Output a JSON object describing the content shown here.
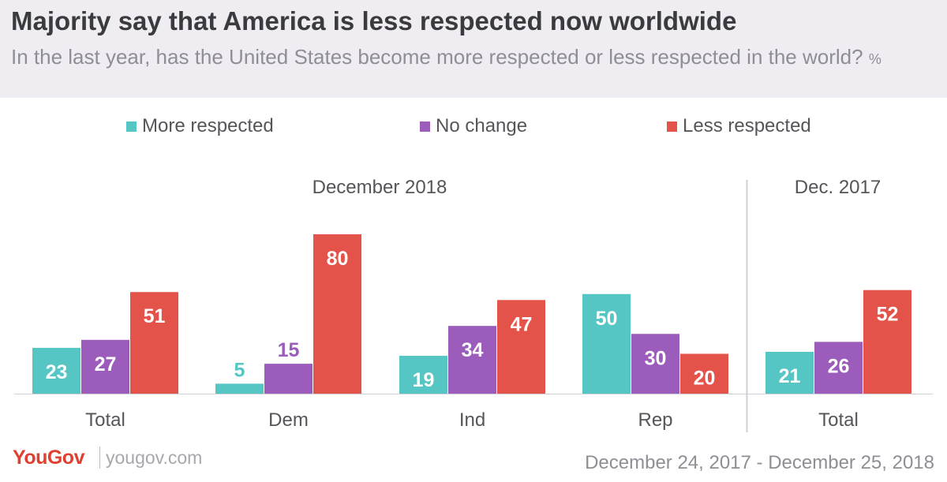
{
  "header": {
    "title": "Majority say that America is less respected now worldwide",
    "subtitle": "In the last year, has the United States become more respected or less respected in the world?",
    "unit": "%"
  },
  "legend": [
    {
      "label": "More respected",
      "color": "#55c6c3"
    },
    {
      "label": "No change",
      "color": "#9b5cbb"
    },
    {
      "label": "Less respected",
      "color": "#e4534a"
    }
  ],
  "chart_data": {
    "type": "bar",
    "ylim": [
      0,
      80
    ],
    "series": [
      {
        "name": "More respected",
        "color": "#55c6c3",
        "values": [
          23,
          5,
          19,
          50,
          21
        ]
      },
      {
        "name": "No change",
        "color": "#9b5cbb",
        "values": [
          27,
          15,
          34,
          30,
          26
        ]
      },
      {
        "name": "Less respected",
        "color": "#e4534a",
        "values": [
          51,
          80,
          47,
          20,
          52
        ]
      }
    ],
    "categories": [
      "Total",
      "Dem",
      "Ind",
      "Rep",
      "Total"
    ],
    "groups": [
      {
        "label": "December 2018",
        "categories": [
          "Total",
          "Dem",
          "Ind",
          "Rep"
        ]
      },
      {
        "label": "Dec. 2017",
        "categories": [
          "Total"
        ]
      }
    ],
    "legend_position": "top",
    "grid": false
  },
  "footer": {
    "brand": "YouGov",
    "url": "yougov.com",
    "date_range": "December 24, 2017 - December 25, 2018"
  }
}
